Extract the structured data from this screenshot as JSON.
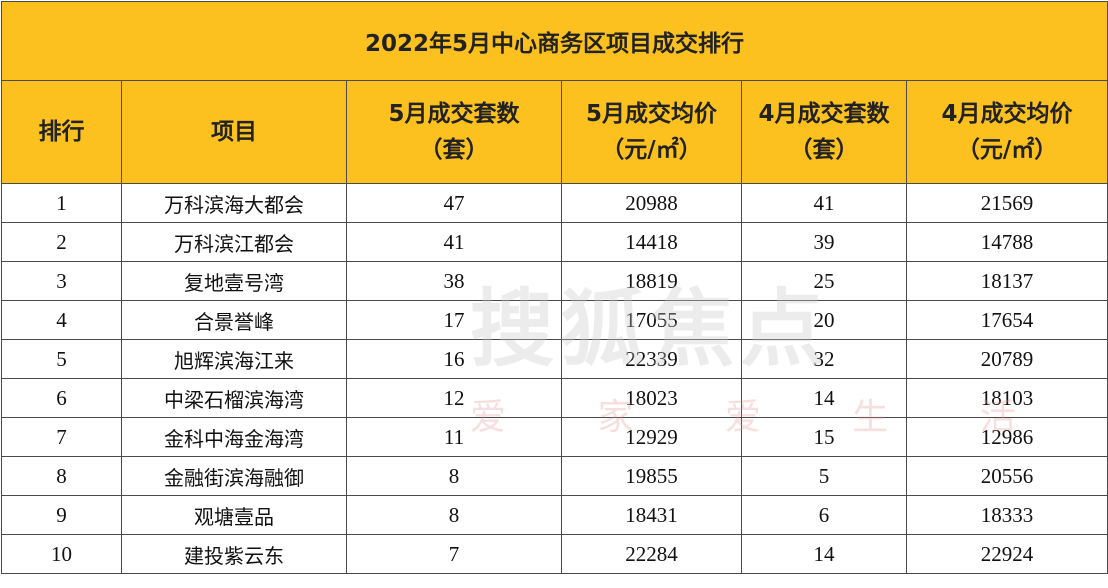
{
  "table": {
    "title": "2022年5月中心商务区项目成交排行",
    "header": [
      "排行",
      "项目",
      "5月成交套数\n（套）",
      "5月成交均价\n（元/㎡）",
      "4月成交套数\n（套）",
      "4月成交均价\n（元/㎡）"
    ],
    "rows": [
      [
        1,
        "万科滨海大都会",
        47,
        20988,
        41,
        21569
      ],
      [
        2,
        "万科滨江都会",
        41,
        14418,
        39,
        14788
      ],
      [
        3,
        "复地壹号湾",
        38,
        18819,
        25,
        18137
      ],
      [
        4,
        "合景誉峰",
        17,
        17055,
        20,
        17654
      ],
      [
        5,
        "旭辉滨海江来",
        16,
        22339,
        32,
        20789
      ],
      [
        6,
        "中梁石榴滨海湾",
        12,
        18023,
        14,
        18103
      ],
      [
        7,
        "金科中海金海湾",
        11,
        12929,
        15,
        12986
      ],
      [
        8,
        "金融街滨海融御",
        8,
        19855,
        5,
        20556
      ],
      [
        9,
        "观塘壹品",
        8,
        18431,
        6,
        18333
      ],
      [
        10,
        "建投紫云东",
        7,
        22284,
        14,
        22924
      ]
    ]
  },
  "watermark": {
    "brand": "搜狐焦点",
    "slogan": "爱 家 爱 生 活"
  }
}
